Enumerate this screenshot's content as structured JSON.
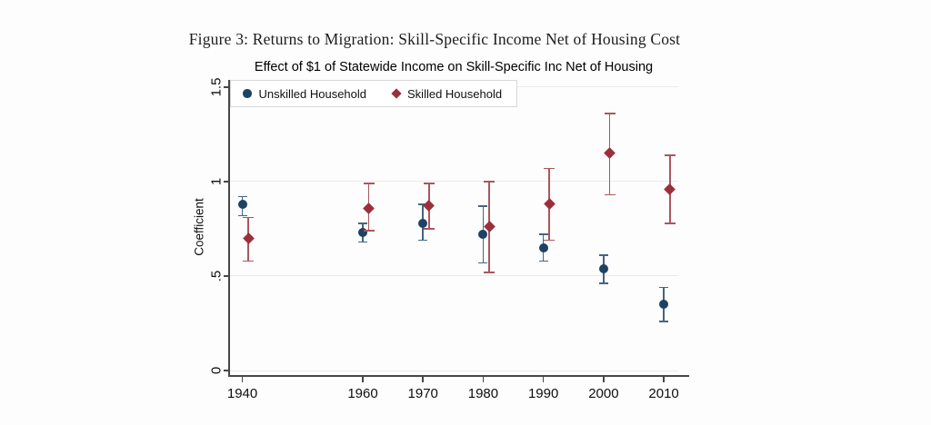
{
  "caption": "Figure 3: Returns to Migration: Skill-Specific Income Net of Housing Cost",
  "colors": {
    "unskilled_marker": "#1d4263",
    "unskilled_errorbar": "#46647f",
    "skilled_marker": "#9c2f3c",
    "skilled_errorbar": "#a9575f",
    "grid": "#e8eaed",
    "axis": "#474747",
    "legend_border": "#d8d8d8"
  },
  "chart_data": {
    "type": "scatter",
    "error_bars": true,
    "title": "Effect of $1 of Statewide Income on Skill-Specific Inc Net of Housing",
    "xlabel": "",
    "ylabel": "Coefficient",
    "x_ticks": [
      1940,
      1960,
      1970,
      1980,
      1990,
      2000,
      2010
    ],
    "y_ticks": [
      0,
      0.5,
      1,
      1.5
    ],
    "y_tick_labels": [
      "0",
      ".5",
      "1",
      "1.5"
    ],
    "xlim": [
      1937.8,
      2012.4
    ],
    "ylim": [
      -0.024,
      1.538
    ],
    "grid": true,
    "legend_position": "top-left",
    "series": [
      {
        "name": "Unskilled Household",
        "marker": "circle",
        "x_offset_years": 0,
        "points": [
          {
            "x": 1940,
            "y": 0.88,
            "lo": 0.82,
            "hi": 0.92
          },
          {
            "x": 1960,
            "y": 0.73,
            "lo": 0.68,
            "hi": 0.78
          },
          {
            "x": 1970,
            "y": 0.78,
            "lo": 0.69,
            "hi": 0.88
          },
          {
            "x": 1980,
            "y": 0.72,
            "lo": 0.57,
            "hi": 0.87
          },
          {
            "x": 1990,
            "y": 0.65,
            "lo": 0.58,
            "hi": 0.72
          },
          {
            "x": 2000,
            "y": 0.54,
            "lo": 0.46,
            "hi": 0.61
          },
          {
            "x": 2010,
            "y": 0.35,
            "lo": 0.26,
            "hi": 0.44
          }
        ]
      },
      {
        "name": "Skilled Household",
        "marker": "diamond",
        "x_offset_years": 1,
        "points": [
          {
            "x": 1940,
            "y": 0.7,
            "lo": 0.58,
            "hi": 0.81
          },
          {
            "x": 1960,
            "y": 0.86,
            "lo": 0.74,
            "hi": 0.99
          },
          {
            "x": 1970,
            "y": 0.87,
            "lo": 0.75,
            "hi": 0.99
          },
          {
            "x": 1980,
            "y": 0.76,
            "lo": 0.52,
            "hi": 1.0
          },
          {
            "x": 1990,
            "y": 0.88,
            "lo": 0.69,
            "hi": 1.07
          },
          {
            "x": 2000,
            "y": 1.15,
            "lo": 0.93,
            "hi": 1.36
          },
          {
            "x": 2010,
            "y": 0.96,
            "lo": 0.78,
            "hi": 1.14
          }
        ]
      }
    ]
  }
}
